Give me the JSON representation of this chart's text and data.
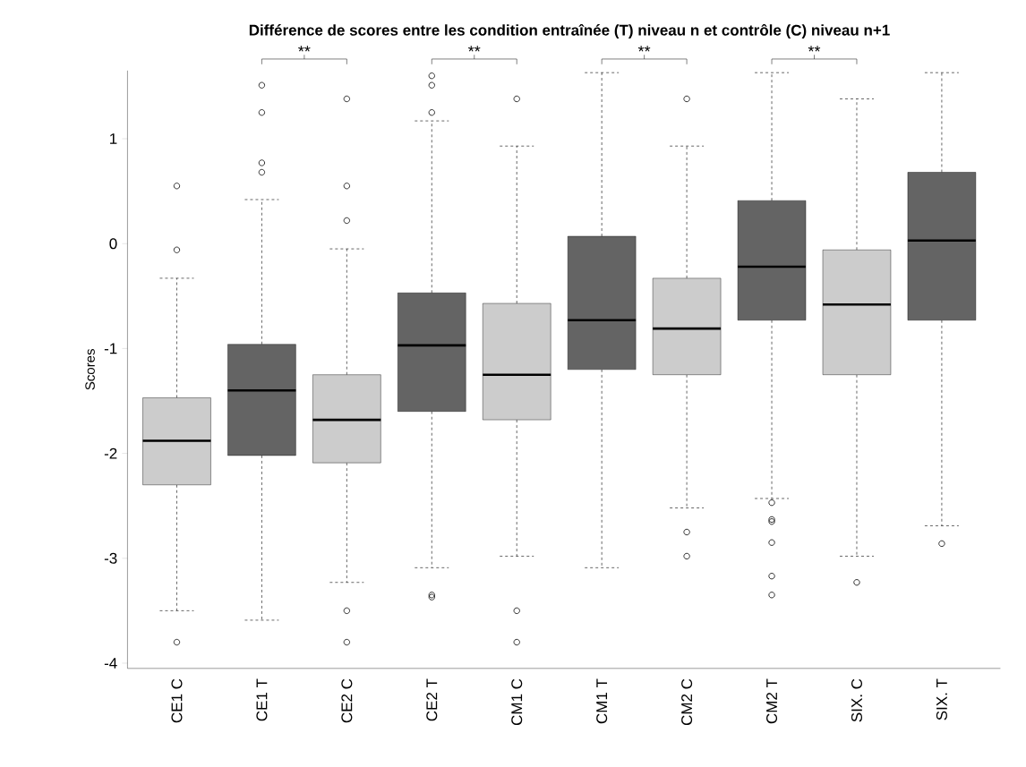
{
  "chart_data": {
    "type": "box",
    "title": "Différence de scores entre les condition entraînée (T) niveau n et contrôle (C) niveau n+1",
    "ylabel": "Scores",
    "categories": [
      "CE1 C",
      "CE1 T",
      "CE2 C",
      "CE2 T",
      "CM1 C",
      "CM1 T",
      "CM2 C",
      "CM2 T",
      "SIX. C",
      "SIX. T"
    ],
    "colors": [
      "#cccccc",
      "#646464",
      "#cccccc",
      "#646464",
      "#cccccc",
      "#646464",
      "#cccccc",
      "#646464",
      "#cccccc",
      "#646464"
    ],
    "boxes": [
      {
        "low": -3.5,
        "q1": -2.3,
        "median": -1.88,
        "q3": -1.47,
        "high": -0.33,
        "outliers": [
          0.55,
          -0.06,
          -3.8
        ]
      },
      {
        "low": -3.59,
        "q1": -2.02,
        "median": -1.4,
        "q3": -0.96,
        "high": 0.42,
        "outliers": [
          1.51,
          1.25,
          0.77,
          0.68
        ]
      },
      {
        "low": -3.23,
        "q1": -2.09,
        "median": -1.68,
        "q3": -1.25,
        "high": -0.05,
        "outliers": [
          1.38,
          0.55,
          0.22,
          -3.5,
          -3.8
        ]
      },
      {
        "low": -3.09,
        "q1": -1.6,
        "median": -0.97,
        "q3": -0.47,
        "high": 1.17,
        "outliers": [
          1.6,
          1.51,
          1.25,
          -3.35,
          -3.37
        ]
      },
      {
        "low": -2.98,
        "q1": -1.68,
        "median": -1.25,
        "q3": -0.57,
        "high": 0.93,
        "outliers": [
          1.38,
          -3.5,
          -3.8
        ]
      },
      {
        "low": -3.09,
        "q1": -1.2,
        "median": -0.73,
        "q3": 0.07,
        "high": 1.63
      },
      {
        "low": -2.52,
        "q1": -1.25,
        "median": -0.81,
        "q3": -0.33,
        "high": 0.93,
        "outliers": [
          1.38,
          -2.75,
          -2.98
        ]
      },
      {
        "low": -2.43,
        "q1": -0.73,
        "median": -0.22,
        "q3": 0.41,
        "high": 1.63,
        "outliers": [
          -2.47,
          -2.63,
          -2.65,
          -2.85,
          -3.17,
          -3.35
        ]
      },
      {
        "low": -2.98,
        "q1": -1.25,
        "median": -0.58,
        "q3": -0.06,
        "high": 1.38,
        "outliers": [
          -3.23
        ]
      },
      {
        "low": -2.69,
        "q1": -0.73,
        "median": 0.03,
        "q3": 0.68,
        "high": 1.63,
        "outliers": [
          -2.86
        ]
      }
    ],
    "ylim": [
      -4.05,
      1.65
    ],
    "yticks": [
      -4,
      -3,
      -2,
      -1,
      0,
      1
    ],
    "annotations": [
      "**",
      "**",
      "**",
      "**"
    ]
  }
}
